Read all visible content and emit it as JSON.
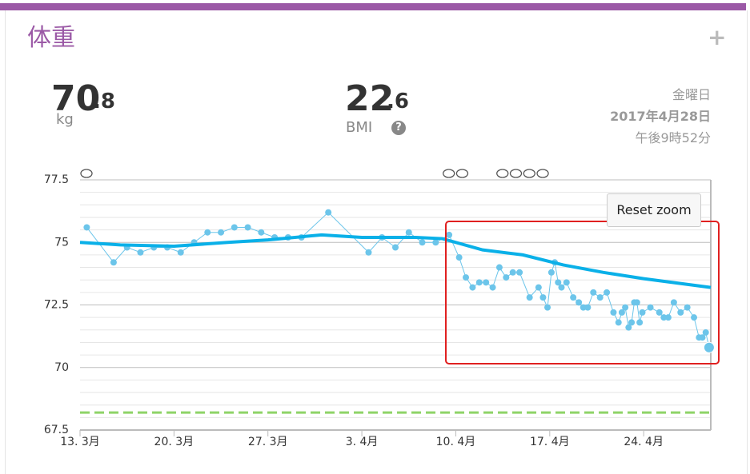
{
  "header": {
    "title": "体重"
  },
  "stats": {
    "weight": {
      "integer": "70",
      "decimal": ".8",
      "unit": "kg"
    },
    "bmi": {
      "integer": "22",
      "decimal": ".6",
      "label": "BMI"
    }
  },
  "timestamp": {
    "weekday": "金曜日",
    "date": "2017年4月28日",
    "time": "午後9時52分"
  },
  "reset_zoom": "Reset zoom",
  "chart_data": {
    "type": "line",
    "xlim": [
      "03-13",
      "04-29"
    ],
    "xticks": [
      {
        "value": "03-13",
        "label": "13. 3月"
      },
      {
        "value": "03-20",
        "label": "20. 3月"
      },
      {
        "value": "03-27",
        "label": "27. 3月"
      },
      {
        "value": "04-03",
        "label": "3. 4月"
      },
      {
        "value": "04-10",
        "label": "10. 4月"
      },
      {
        "value": "04-17",
        "label": "17. 4月"
      },
      {
        "value": "04-24",
        "label": "24. 4月"
      }
    ],
    "ylim": [
      67.5,
      77.5
    ],
    "yticks": [
      67.5,
      70,
      72.5,
      75,
      77.5
    ],
    "grid": true,
    "minor_grid": true,
    "notes": [
      "03-13",
      "04-09",
      "04-10",
      "04-13",
      "04-14",
      "04-15",
      "04-16"
    ],
    "goal_line": {
      "value": 68.2,
      "color": "#8fd468"
    },
    "series": [
      {
        "color": "#6cc5ea",
        "x": [
          "03-13",
          "03-15",
          "03-16",
          "03-17",
          "03-18",
          "03-19",
          "03-20",
          "03-21",
          "03-22",
          "03-23",
          "03-24",
          "03-25",
          "03-26",
          "03-27",
          "03-28",
          "03-29",
          "03-31",
          "04-03",
          "04-04",
          "04-05",
          "04-06",
          "04-07",
          "04-08",
          "04-09",
          "04-10",
          "04-10",
          "04-11",
          "04-11",
          "04-12",
          "04-12",
          "04-13",
          "04-13",
          "04-14",
          "04-14",
          "04-15",
          "04-16",
          "04-16",
          "04-16",
          "04-17",
          "04-17",
          "04-17",
          "04-17",
          "04-18",
          "04-18",
          "04-19",
          "04-19",
          "04-19",
          "04-20",
          "04-20",
          "04-21",
          "04-21",
          "04-22",
          "04-22",
          "04-22",
          "04-22",
          "04-23",
          "04-23",
          "04-23",
          "04-23",
          "04-23",
          "04-24",
          "04-25",
          "04-25",
          "04-25",
          "04-26",
          "04-26",
          "04-27",
          "04-27",
          "04-28",
          "04-28",
          "04-28",
          "04-28"
        ],
        "values": [
          75.6,
          74.2,
          74.8,
          74.6,
          74.8,
          74.8,
          74.6,
          75.0,
          75.4,
          75.4,
          75.6,
          75.6,
          75.4,
          75.2,
          75.2,
          75.2,
          76.2,
          74.6,
          75.2,
          74.8,
          75.4,
          75.0,
          75.0,
          75.3,
          74.4,
          73.6,
          73.2,
          73.4,
          73.4,
          73.2,
          74.0,
          73.6,
          73.8,
          73.8,
          72.8,
          73.2,
          72.8,
          72.4,
          73.8,
          74.2,
          73.4,
          73.2,
          73.4,
          72.8,
          72.6,
          72.4,
          72.4,
          73.0,
          72.8,
          73.0,
          72.2,
          71.8,
          72.2,
          72.4,
          71.6,
          71.8,
          72.6,
          72.6,
          71.8,
          72.2,
          72.4,
          72.2,
          72.0,
          72.0,
          72.6,
          72.2,
          72.4,
          72.0,
          71.2,
          71.2,
          71.4,
          70.8
        ]
      },
      {
        "color": "#0ab0e8",
        "x": [
          "03-13",
          "03-16",
          "03-20",
          "03-24",
          "03-27",
          "03-31",
          "04-03",
          "04-07",
          "04-09",
          "04-12",
          "04-15",
          "04-18",
          "04-21",
          "04-24",
          "04-29"
        ],
        "values": [
          75.0,
          74.9,
          74.85,
          75.0,
          75.1,
          75.3,
          75.2,
          75.2,
          75.15,
          74.7,
          74.5,
          74.1,
          73.8,
          73.55,
          73.2
        ]
      }
    ]
  }
}
